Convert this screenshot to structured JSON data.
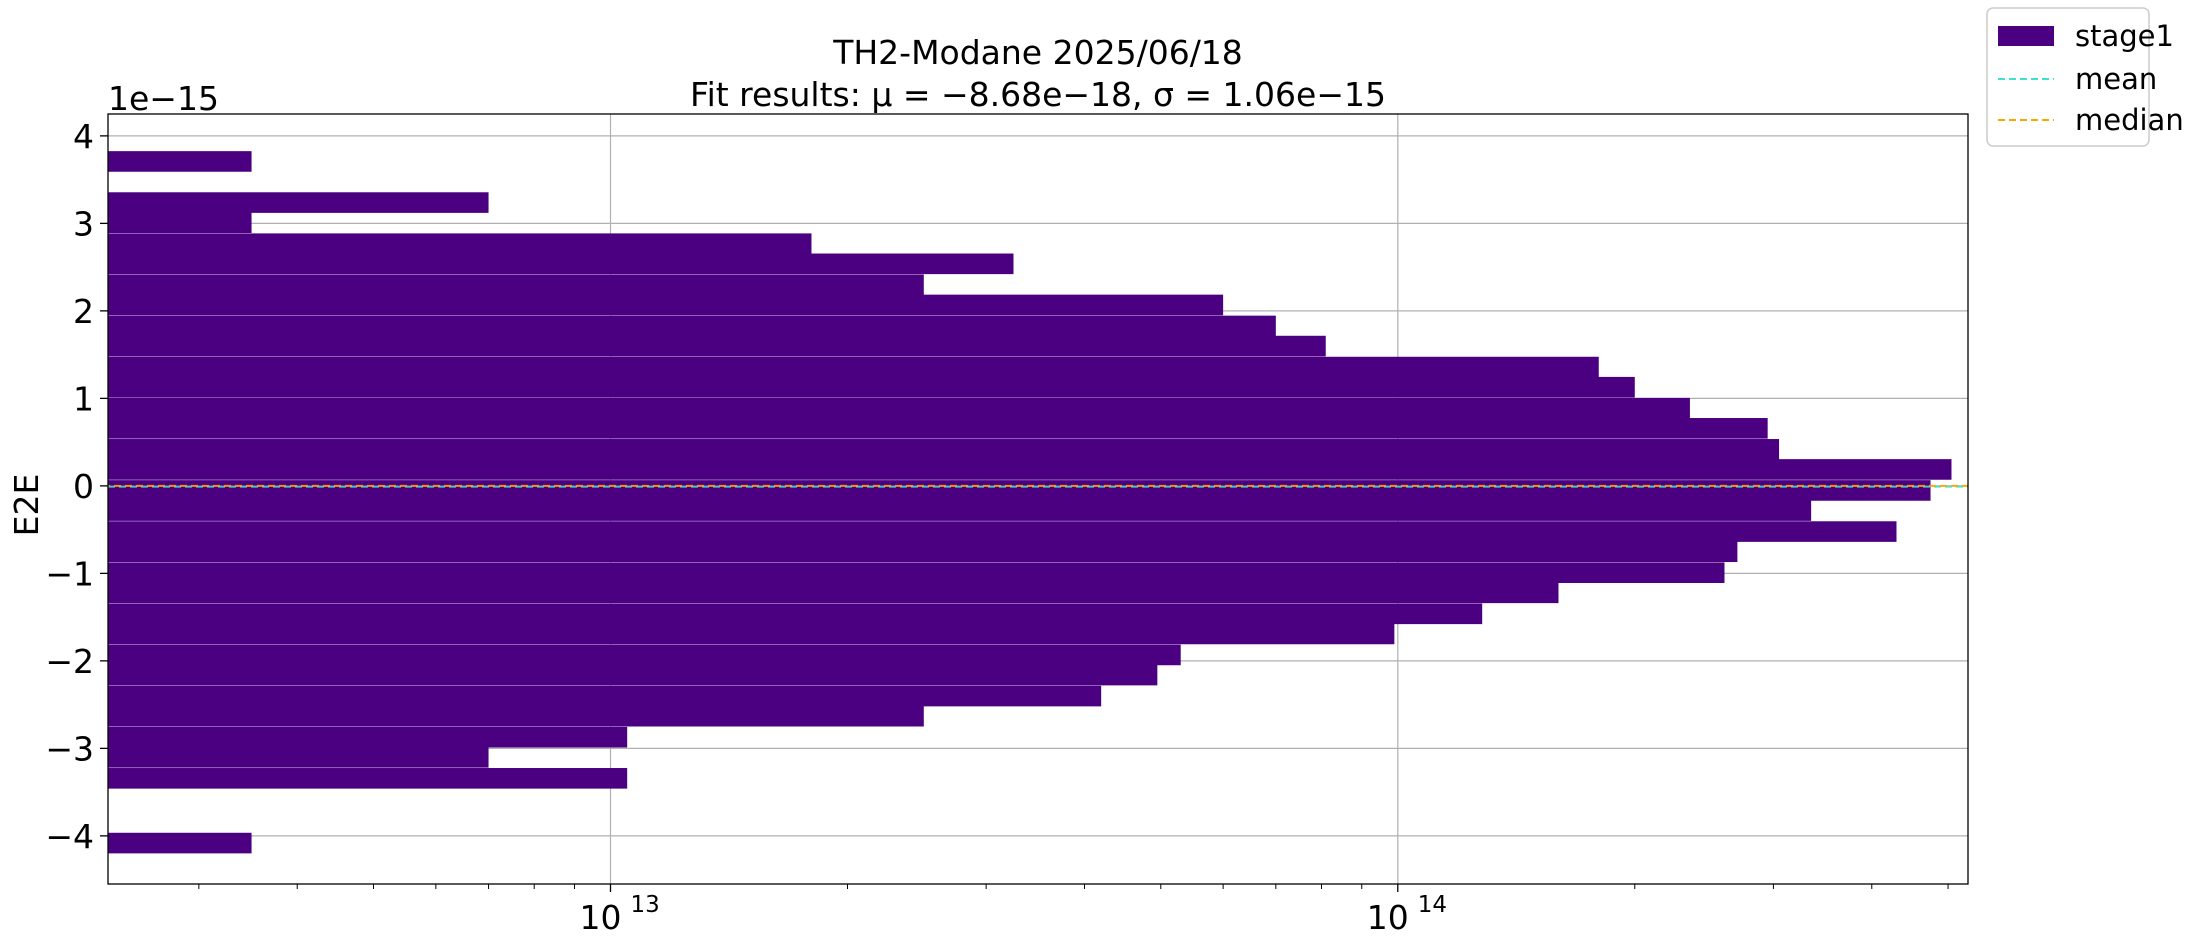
{
  "chart_data": {
    "type": "bar",
    "orientation": "horizontal",
    "title": "TH2-Modane 2025/06/18",
    "subtitle": "Fit results: μ = −8.68e−18,  σ = 1.06e−15",
    "xlabel": "",
    "ylabel": "E2E",
    "y_offset_label": "1e−15",
    "x_scale": "log",
    "xlim": [
      2300000000000.0,
      530000000000000.0
    ],
    "ylim": [
      -4.55,
      4.25
    ],
    "y_units": "1e-15",
    "grid": true,
    "y_ticks": [
      -4,
      -3,
      -2,
      -1,
      0,
      1,
      2,
      3,
      4
    ],
    "y_tick_labels": [
      "−4",
      "−3",
      "−2",
      "−1",
      "0",
      "1",
      "2",
      "3",
      "4"
    ],
    "x_ticks": [
      10000000000000.0,
      100000000000000.0
    ],
    "x_tick_labels": [
      {
        "base": "10",
        "exp": "13"
      },
      {
        "base": "10",
        "exp": "14"
      }
    ],
    "bin_width": 0.2355,
    "series": [
      {
        "name": "stage1",
        "color": "#4b0082",
        "bins": [
          {
            "y0": -4.2,
            "count": 3500000000000.0
          },
          {
            "y0": -3.46,
            "count": 10500000000000.0
          },
          {
            "y0": -3.22,
            "count": 7000000000000.0
          },
          {
            "y0": -2.99,
            "count": 10500000000000.0
          },
          {
            "y0": -2.75,
            "count": 25000000000000.0
          },
          {
            "y0": -2.52,
            "count": 42000000000000.0
          },
          {
            "y0": -2.28,
            "count": 49500000000000.0
          },
          {
            "y0": -2.05,
            "count": 53000000000000.0
          },
          {
            "y0": -1.81,
            "count": 99000000000000.0
          },
          {
            "y0": -1.58,
            "count": 128000000000000.0
          },
          {
            "y0": -1.34,
            "count": 160000000000000.0
          },
          {
            "y0": -1.11,
            "count": 260000000000000.0
          },
          {
            "y0": -0.87,
            "count": 270000000000000.0
          },
          {
            "y0": -0.64,
            "count": 430000000000000.0
          },
          {
            "y0": -0.4,
            "count": 335000000000000.0
          },
          {
            "y0": -0.17,
            "count": 475000000000000.0
          },
          {
            "y0": 0.07,
            "count": 505000000000000.0
          },
          {
            "y0": 0.3,
            "count": 305000000000000.0
          },
          {
            "y0": 0.54,
            "count": 295000000000000.0
          },
          {
            "y0": 0.77,
            "count": 235000000000000.0
          },
          {
            "y0": 1.01,
            "count": 200000000000000.0
          },
          {
            "y0": 1.24,
            "count": 180000000000000.0
          },
          {
            "y0": 1.48,
            "count": 81000000000000.0
          },
          {
            "y0": 1.71,
            "count": 70000000000000.0
          },
          {
            "y0": 1.95,
            "count": 60000000000000.0
          },
          {
            "y0": 2.18,
            "count": 25000000000000.0
          },
          {
            "y0": 2.42,
            "count": 32500000000000.0
          },
          {
            "y0": 2.65,
            "count": 18000000000000.0
          },
          {
            "y0": 2.89,
            "count": 3500000000000.0
          },
          {
            "y0": 3.12,
            "count": 7000000000000.0
          },
          {
            "y0": 3.59,
            "count": 3500000000000.0
          }
        ]
      }
    ],
    "reference_lines": [
      {
        "name": "mean",
        "value": -0.00868,
        "color": "#40e0d0",
        "style": "dashed"
      },
      {
        "name": "median",
        "value": 0.0,
        "color": "#ffa500",
        "style": "dashed"
      }
    ],
    "legend": {
      "position": "outside-top-right",
      "entries": [
        {
          "label": "stage1",
          "kind": "patch",
          "color": "#4b0082"
        },
        {
          "label": "mean",
          "kind": "line",
          "color": "#40e0d0"
        },
        {
          "label": "median",
          "kind": "line",
          "color": "#ffa500"
        }
      ]
    }
  }
}
